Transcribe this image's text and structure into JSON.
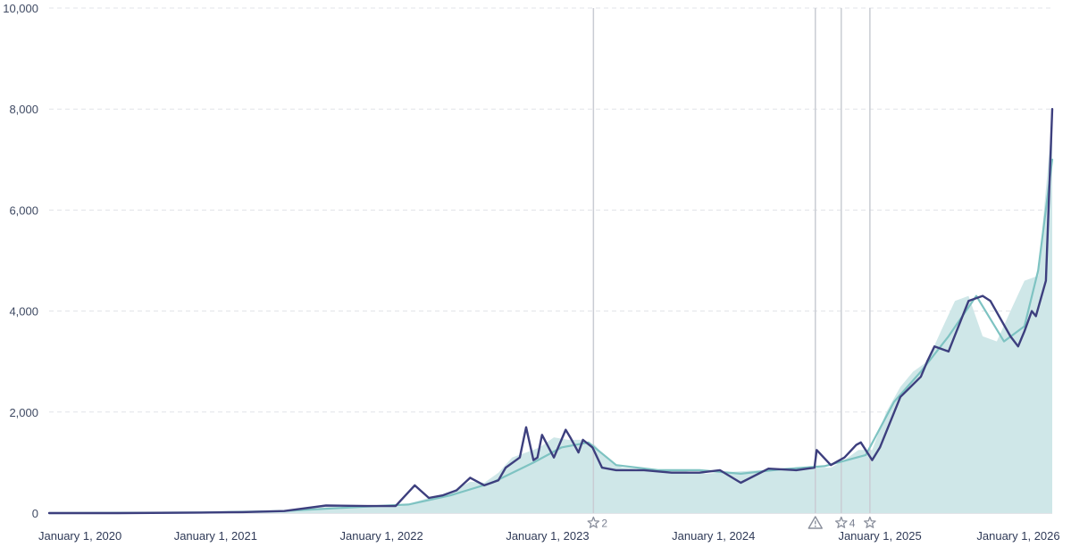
{
  "chart_data": {
    "type": "area",
    "ylim": [
      0,
      10000
    ],
    "y_ticks": [
      {
        "value": 0,
        "label": "0"
      },
      {
        "value": 2000,
        "label": "2,000"
      },
      {
        "value": 4000,
        "label": "4,000"
      },
      {
        "value": 6000,
        "label": "6,000"
      },
      {
        "value": 8000,
        "label": "8,000"
      },
      {
        "value": 10000,
        "label": "10,000"
      }
    ],
    "x_range": [
      "2020-01-01",
      "2026-01-15"
    ],
    "x_ticks": [
      {
        "date": "2020-01-01",
        "label": "January 1, 2020"
      },
      {
        "date": "2021-01-01",
        "label": "January 1, 2021"
      },
      {
        "date": "2022-01-01",
        "label": "January 1, 2022"
      },
      {
        "date": "2023-01-01",
        "label": "January 1, 2023"
      },
      {
        "date": "2024-01-01",
        "label": "January 1, 2024"
      },
      {
        "date": "2025-01-01",
        "label": "January 1, 2025"
      },
      {
        "date": "2026-01-01",
        "label": "January 1, 2026"
      }
    ],
    "grid": true,
    "colors": {
      "area": "#cfe7e8",
      "short_average": "#3d3f7e",
      "long_average": "#7ec3c2",
      "event_line": "#c9ccd3",
      "marker": "#8a8f9c"
    },
    "events": [
      {
        "date": "2023-04-12",
        "icon": "star-icon",
        "label": "2"
      },
      {
        "date": "2024-08-12",
        "icon": "warning-icon",
        "label": ""
      },
      {
        "date": "2024-10-08",
        "icon": "star-icon",
        "label": "4"
      },
      {
        "date": "2024-12-10",
        "icon": "star-icon",
        "label": ""
      }
    ],
    "series": [
      {
        "style": "area",
        "x": [
          "2020-01-01",
          "2020-06-01",
          "2020-12-01",
          "2021-03-01",
          "2021-06-01",
          "2021-09-01",
          "2021-12-01",
          "2022-02-15",
          "2022-03-15",
          "2022-04-15",
          "2022-05-15",
          "2022-06-15",
          "2022-07-15",
          "2022-08-15",
          "2022-09-15",
          "2022-10-15",
          "2022-11-15",
          "2022-12-15",
          "2023-01-15",
          "2023-02-15",
          "2023-03-15",
          "2023-04-15",
          "2023-05-15",
          "2023-06-15",
          "2023-08-15",
          "2023-10-15",
          "2023-12-15",
          "2024-02-15",
          "2024-04-15",
          "2024-06-15",
          "2024-08-15",
          "2024-09-15",
          "2024-10-15",
          "2024-11-15",
          "2024-12-15",
          "2025-01-15",
          "2025-02-15",
          "2025-03-15",
          "2025-04-15",
          "2025-05-15",
          "2025-06-15",
          "2025-07-15",
          "2025-08-15",
          "2025-09-15",
          "2025-10-15",
          "2025-11-15",
          "2025-12-15",
          "2026-01-15"
        ],
        "values": [
          0,
          0,
          10,
          20,
          40,
          120,
          130,
          140,
          220,
          300,
          320,
          480,
          620,
          600,
          800,
          1100,
          1200,
          1300,
          1500,
          1450,
          1450,
          1350,
          1050,
          900,
          850,
          850,
          780,
          820,
          850,
          880,
          900,
          900,
          1050,
          1250,
          1250,
          2000,
          2500,
          2800,
          3000,
          3600,
          4200,
          4300,
          3500,
          3400,
          4000,
          4600,
          4700,
          7800
        ]
      },
      {
        "name": "",
        "style": "line",
        "x": [
          "2020-01-01",
          "2020-06-01",
          "2020-12-01",
          "2021-03-01",
          "2021-06-01",
          "2021-09-01",
          "2021-12-01",
          "2022-02-01",
          "2022-03-15",
          "2022-04-15",
          "2022-05-15",
          "2022-06-15",
          "2022-07-15",
          "2022-08-15",
          "2022-09-15",
          "2022-10-01",
          "2022-11-01",
          "2022-11-15",
          "2022-12-01",
          "2022-12-10",
          "2022-12-20",
          "2023-01-15",
          "2023-02-10",
          "2023-02-20",
          "2023-03-10",
          "2023-03-20",
          "2023-04-10",
          "2023-05-01",
          "2023-06-01",
          "2023-08-01",
          "2023-10-01",
          "2023-12-01",
          "2024-01-15",
          "2024-03-01",
          "2024-05-01",
          "2024-07-01",
          "2024-08-10",
          "2024-08-15",
          "2024-09-15",
          "2024-10-15",
          "2024-11-10",
          "2024-11-20",
          "2024-12-15",
          "2025-01-01",
          "2025-02-15",
          "2025-04-01",
          "2025-04-15",
          "2025-05-01",
          "2025-06-01",
          "2025-07-15",
          "2025-08-15",
          "2025-09-01",
          "2025-10-15",
          "2025-11-01",
          "2025-11-15",
          "2025-12-01",
          "2025-12-10",
          "2026-01-01",
          "2026-01-15"
        ],
        "values": [
          0,
          0,
          10,
          20,
          40,
          150,
          140,
          140,
          550,
          300,
          350,
          450,
          700,
          550,
          650,
          900,
          1100,
          1700,
          1050,
          1100,
          1550,
          1100,
          1650,
          1500,
          1200,
          1450,
          1300,
          900,
          850,
          850,
          800,
          800,
          850,
          600,
          880,
          850,
          900,
          1250,
          950,
          1100,
          1350,
          1400,
          1050,
          1300,
          2300,
          2700,
          3000,
          3300,
          3200,
          4200,
          4300,
          4200,
          3500,
          3300,
          3600,
          4000,
          3900,
          4600,
          8000
        ]
      },
      {
        "name": "",
        "style": "line",
        "x": [
          "2020-01-01",
          "2020-12-01",
          "2021-06-01",
          "2021-12-01",
          "2022-03-01",
          "2022-06-01",
          "2022-09-01",
          "2022-12-01",
          "2023-02-01",
          "2023-04-01",
          "2023-06-01",
          "2023-09-01",
          "2023-12-01",
          "2024-03-01",
          "2024-06-01",
          "2024-09-01",
          "2024-12-01",
          "2025-02-01",
          "2025-04-01",
          "2025-06-01",
          "2025-08-01",
          "2025-10-01",
          "2025-11-15",
          "2025-12-15",
          "2026-01-15"
        ],
        "values": [
          0,
          10,
          40,
          130,
          170,
          350,
          600,
          1000,
          1300,
          1400,
          950,
          850,
          850,
          780,
          870,
          930,
          1150,
          2200,
          2800,
          3500,
          4300,
          3400,
          3700,
          4800,
          7000
        ]
      }
    ]
  }
}
